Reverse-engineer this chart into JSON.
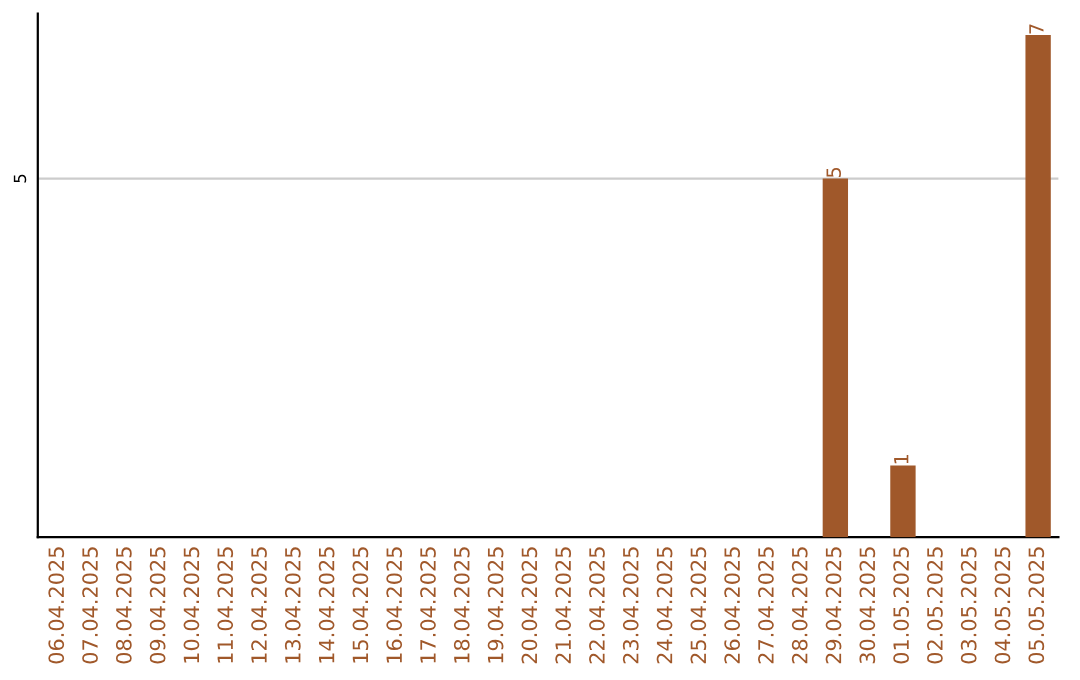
{
  "chart_data": {
    "type": "bar",
    "categories": [
      "06.04.2025",
      "07.04.2025",
      "08.04.2025",
      "09.04.2025",
      "10.04.2025",
      "11.04.2025",
      "12.04.2025",
      "13.04.2025",
      "14.04.2025",
      "15.04.2025",
      "16.04.2025",
      "17.04.2025",
      "18.04.2025",
      "19.04.2025",
      "20.04.2025",
      "21.04.2025",
      "22.04.2025",
      "23.04.2025",
      "24.04.2025",
      "25.04.2025",
      "26.04.2025",
      "27.04.2025",
      "28.04.2025",
      "29.04.2025",
      "30.04.2025",
      "01.05.2025",
      "02.05.2025",
      "03.05.2025",
      "04.05.2025",
      "05.05.2025"
    ],
    "values": [
      null,
      null,
      null,
      null,
      null,
      null,
      null,
      null,
      null,
      null,
      null,
      null,
      null,
      null,
      null,
      null,
      null,
      null,
      null,
      null,
      null,
      null,
      null,
      5,
      null,
      1,
      null,
      null,
      null,
      7
    ],
    "data_labels": true,
    "color": "#a0582a",
    "ylim": [
      0,
      7.3
    ],
    "yticks": [
      5
    ],
    "grid": "y"
  }
}
